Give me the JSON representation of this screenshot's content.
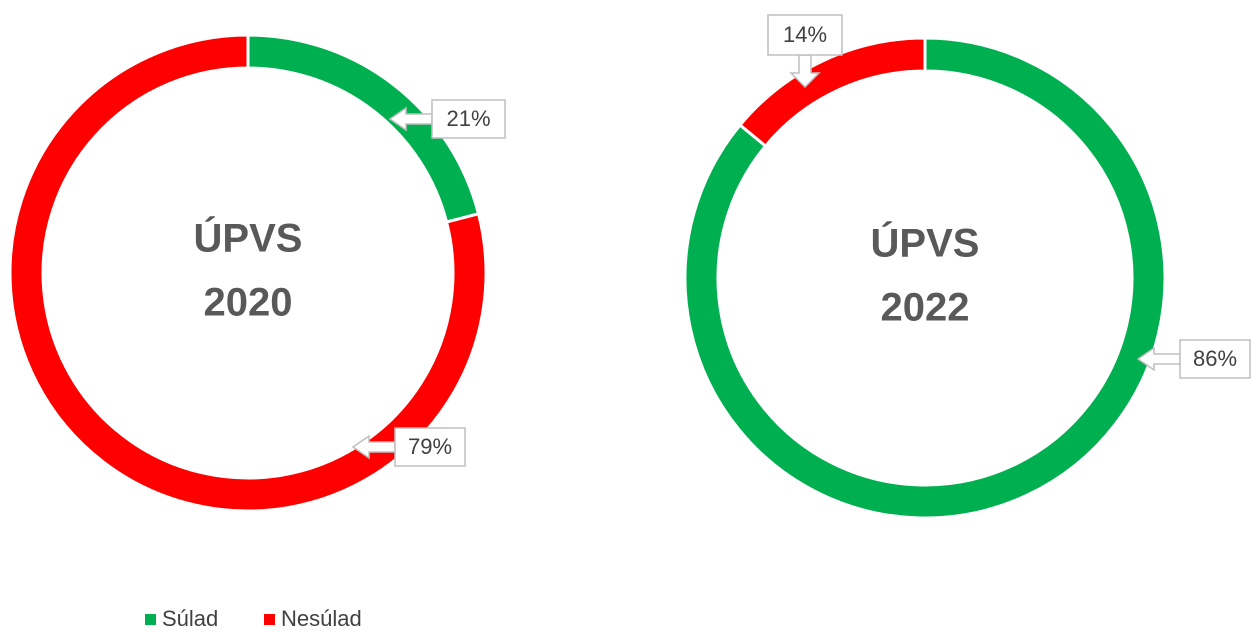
{
  "chart_data": [
    {
      "type": "donut",
      "center_text": [
        "ÚPVS",
        "2020"
      ],
      "categories": [
        "Súlad",
        "Nesúlad"
      ],
      "values": [
        21,
        79
      ],
      "value_labels": [
        "21%",
        "79%"
      ],
      "colors": [
        "#00b050",
        "#ff0000"
      ]
    },
    {
      "type": "donut",
      "center_text": [
        "ÚPVS",
        "2022"
      ],
      "categories": [
        "Súlad",
        "Nesúlad"
      ],
      "values": [
        86,
        14
      ],
      "value_labels": [
        "86%",
        "14%"
      ],
      "colors": [
        "#00b050",
        "#ff0000"
      ]
    }
  ]
}
